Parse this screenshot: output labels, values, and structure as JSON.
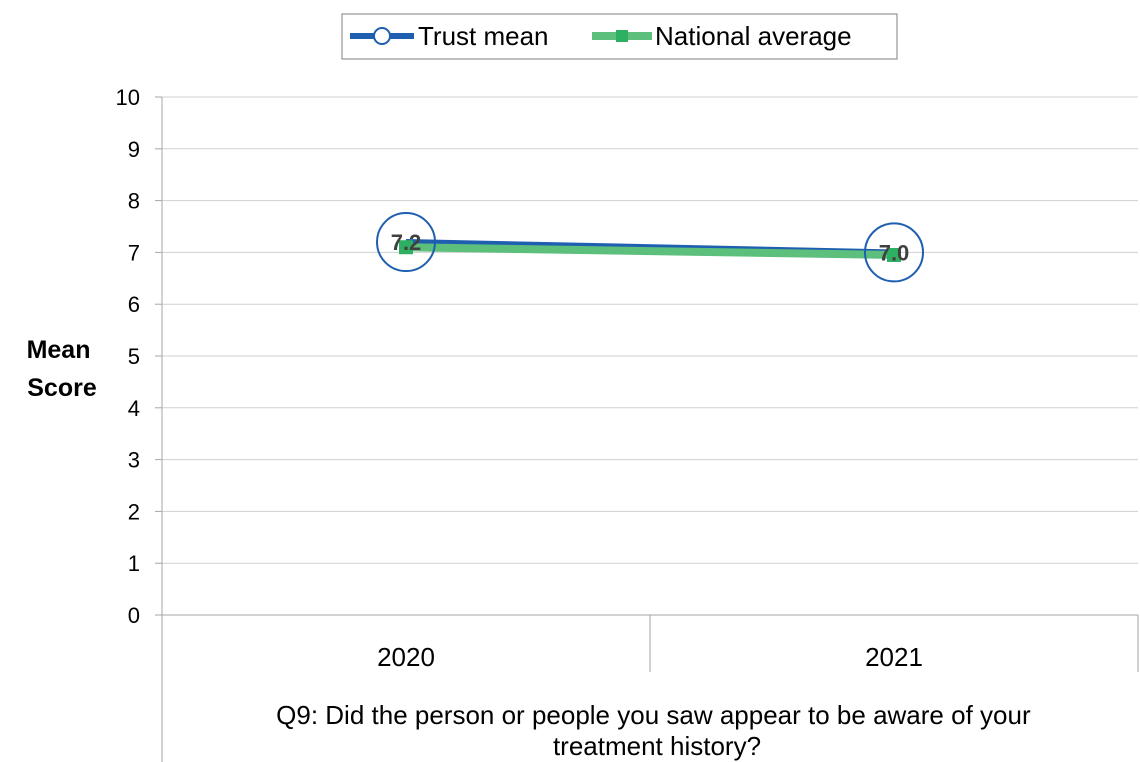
{
  "chart_data": {
    "type": "line",
    "title": "",
    "categories": [
      "2020",
      "2021"
    ],
    "xlabel_lines": [
      "Q9: Did the person or people you saw appear to be aware of your",
      "treatment history?"
    ],
    "ylabel_lines": [
      "Mean",
      "Score"
    ],
    "ylim": [
      0,
      10
    ],
    "yticks": [
      0,
      1,
      2,
      3,
      4,
      5,
      6,
      7,
      8,
      9,
      10
    ],
    "grid": true,
    "legend_position": "top",
    "series": [
      {
        "name": "Trust mean",
        "values": [
          7.2,
          7.0
        ],
        "data_labels": [
          "7.2",
          "7.0"
        ],
        "color": "#1f5fb0",
        "marker": "open-circle"
      },
      {
        "name": "National average",
        "values": [
          7.1,
          6.95
        ],
        "color": "#5cbf7c",
        "marker": "square"
      }
    ]
  }
}
